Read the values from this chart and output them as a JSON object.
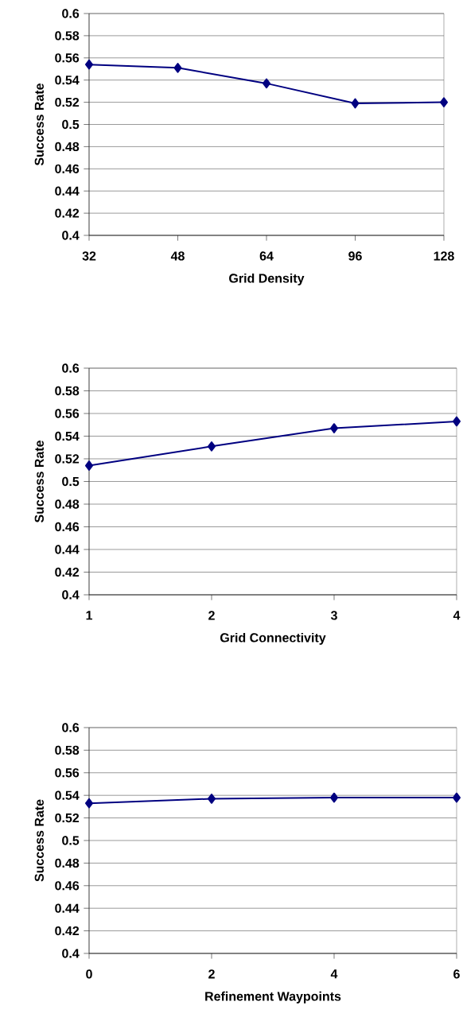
{
  "chart_data": [
    {
      "type": "line",
      "categories": [
        "32",
        "48",
        "64",
        "96",
        "128"
      ],
      "xlabel": "Grid Density",
      "ylabel": "Success Rate",
      "series": [
        {
          "color": "#000080",
          "values": [
            0.554,
            0.551,
            0.537,
            0.519,
            0.52
          ]
        }
      ],
      "ylim": [
        0.4,
        0.6
      ],
      "yticks": [
        0.4,
        0.42,
        0.44,
        0.46,
        0.48,
        0.5,
        0.52,
        0.54,
        0.56,
        0.58,
        0.6
      ],
      "grid": "y",
      "marker": "diamond",
      "line_style": "solid"
    },
    {
      "type": "line",
      "categories": [
        "1",
        "2",
        "3",
        "4"
      ],
      "xlabel": "Grid Connectivity",
      "ylabel": "Success Rate",
      "series": [
        {
          "color": "#000080",
          "values": [
            0.514,
            0.531,
            0.547,
            0.553
          ]
        }
      ],
      "ylim": [
        0.4,
        0.6
      ],
      "yticks": [
        0.4,
        0.42,
        0.44,
        0.46,
        0.48,
        0.5,
        0.52,
        0.54,
        0.56,
        0.58,
        0.6
      ],
      "grid": "y",
      "marker": "diamond",
      "line_style": "solid"
    },
    {
      "type": "line",
      "categories": [
        "0",
        "2",
        "4",
        "6"
      ],
      "xlabel": "Refinement Waypoints",
      "ylabel": "Success Rate",
      "series": [
        {
          "color": "#000080",
          "values": [
            0.533,
            0.537,
            0.538,
            0.538
          ]
        }
      ],
      "ylim": [
        0.4,
        0.6
      ],
      "yticks": [
        0.4,
        0.42,
        0.44,
        0.46,
        0.48,
        0.5,
        0.52,
        0.54,
        0.56,
        0.58,
        0.6
      ],
      "grid": "y",
      "marker": "diamond",
      "line_style": "solid"
    }
  ]
}
